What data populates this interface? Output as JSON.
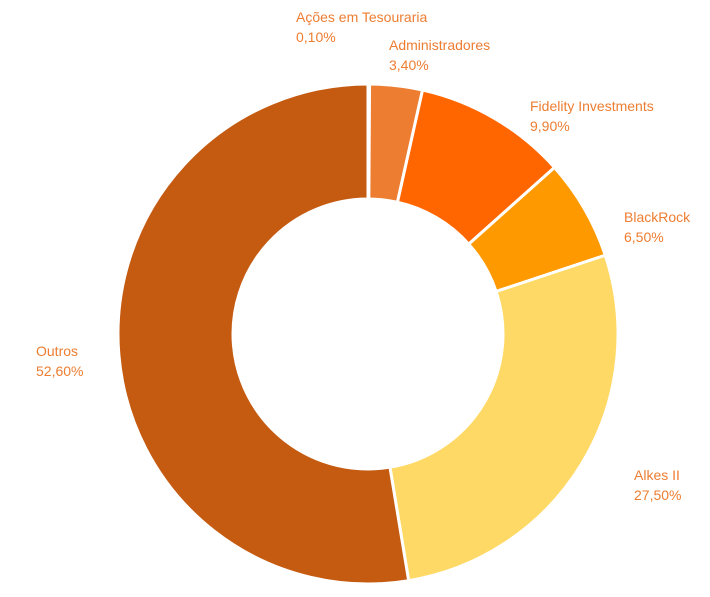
{
  "chart_data": {
    "type": "pie",
    "donut": true,
    "title": "",
    "label_color": "#ED7D31",
    "start_angle_deg": 0,
    "direction": "clockwise",
    "legend": "none",
    "slices": [
      {
        "name": "Ações em Tesouraria",
        "value": 0.1,
        "value_label": "0,10%",
        "color": "#C55A11",
        "label_anchor": "start"
      },
      {
        "name": "Administradores",
        "value": 3.4,
        "value_label": "3,40%",
        "color": "#ED7D31",
        "label_anchor": "start"
      },
      {
        "name": "Fidelity Investments",
        "value": 9.9,
        "value_label": "9,90%",
        "color": "#FF6600",
        "label_anchor": "start"
      },
      {
        "name": "BlackRock",
        "value": 6.5,
        "value_label": "6,50%",
        "color": "#FF9900",
        "label_anchor": "start"
      },
      {
        "name": "Alkes II",
        "value": 27.5,
        "value_label": "27,50%",
        "color": "#FFD966",
        "label_anchor": "start"
      },
      {
        "name": "Outros",
        "value": 52.6,
        "value_label": "52,60%",
        "color": "#C55A11",
        "label_anchor": "start"
      }
    ]
  }
}
